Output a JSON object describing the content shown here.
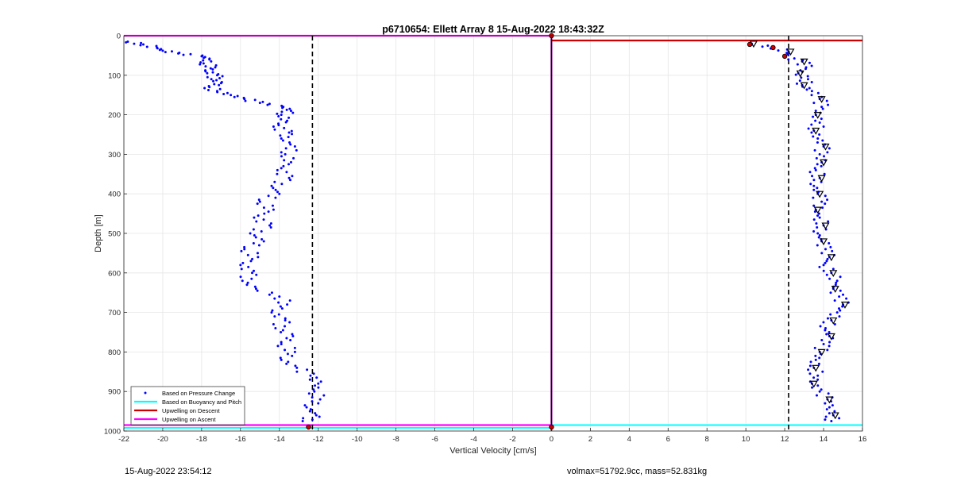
{
  "footer": {
    "timestamp": "15-Aug-2022 23:54:12",
    "params": "volmax=51792.9cc, mass=52.831kg"
  },
  "chart_data": {
    "type": "scatter",
    "title": "p6710654: Ellett Array 8 15-Aug-2022 18:43:32Z",
    "xlabel": "Vertical Velocity [cm/s]",
    "ylabel": "Depth [m]",
    "xlim": [
      -22,
      16
    ],
    "ylim": [
      0,
      1000
    ],
    "y_reversed": true,
    "grid": true,
    "xticks": [
      -22,
      -20,
      -18,
      -16,
      -14,
      -12,
      -10,
      -8,
      -6,
      -4,
      -2,
      0,
      2,
      4,
      6,
      8,
      10,
      12,
      14,
      16
    ],
    "yticks": [
      0,
      100,
      200,
      300,
      400,
      500,
      600,
      700,
      800,
      900,
      1000
    ],
    "legend_position": "bottom-left",
    "legend": [
      {
        "label": "Based on Pressure Change",
        "color": "#0000ff",
        "style": "dot"
      },
      {
        "label": "Based on Buoyancy and Pitch",
        "color": "#00ffff",
        "style": "line"
      },
      {
        "label": "Upwelling on Descent",
        "color": "#cc0000",
        "style": "line"
      },
      {
        "label": "Upwelling on Ascent",
        "color": "#ff00ff",
        "style": "line"
      }
    ],
    "mean_lines": [
      {
        "name": "mean descent velocity",
        "x": -12.3,
        "style": "dashed",
        "color": "#000000"
      },
      {
        "name": "mean ascent velocity",
        "x": 12.2,
        "style": "dashed",
        "color": "#000000"
      },
      {
        "name": "zero",
        "x": 0,
        "style": "solid",
        "color": "#000000"
      }
    ],
    "upwelling_descent": {
      "points": [
        [
          0,
          12
        ],
        [
          16,
          12
        ]
      ],
      "color": "#cc0000"
    },
    "upwelling_ascent": {
      "points": [
        [
          -22,
          0
        ],
        [
          0,
          0
        ],
        [
          0,
          985
        ],
        [
          -22,
          985
        ]
      ],
      "color": "#ff00ff"
    },
    "buoyancy_lines": [
      {
        "points": [
          [
            0,
            985
          ],
          [
            16,
            985
          ]
        ],
        "color": "#00ffff"
      },
      {
        "points": [
          [
            -22,
            992
          ],
          [
            0,
            992
          ]
        ],
        "color": "#00ffff"
      }
    ],
    "pressure_descent_profile": [
      [
        -21.8,
        15
      ],
      [
        -21.0,
        22
      ],
      [
        -20.3,
        30
      ],
      [
        -20.0,
        38
      ],
      [
        -19.2,
        45
      ],
      [
        -18.0,
        52
      ],
      [
        -17.6,
        60
      ],
      [
        -17.9,
        70
      ],
      [
        -17.3,
        80
      ],
      [
        -17.8,
        90
      ],
      [
        -17.2,
        100
      ],
      [
        -17.5,
        110
      ],
      [
        -17.0,
        120
      ],
      [
        -17.6,
        130
      ],
      [
        -17.2,
        140
      ],
      [
        -16.5,
        150
      ],
      [
        -15.8,
        160
      ],
      [
        -15.0,
        170
      ],
      [
        -13.8,
        180
      ],
      [
        -13.4,
        190
      ],
      [
        -13.9,
        200
      ],
      [
        -13.6,
        215
      ],
      [
        -14.3,
        230
      ],
      [
        -13.5,
        245
      ],
      [
        -13.9,
        260
      ],
      [
        -13.2,
        280
      ],
      [
        -13.7,
        300
      ],
      [
        -13.4,
        320
      ],
      [
        -14.1,
        340
      ],
      [
        -13.5,
        360
      ],
      [
        -14.4,
        380
      ],
      [
        -14.0,
        400
      ],
      [
        -15.0,
        420
      ],
      [
        -14.3,
        440
      ],
      [
        -15.3,
        460
      ],
      [
        -14.5,
        480
      ],
      [
        -15.5,
        500
      ],
      [
        -14.8,
        520
      ],
      [
        -15.8,
        540
      ],
      [
        -15.1,
        560
      ],
      [
        -16.0,
        580
      ],
      [
        -15.4,
        600
      ],
      [
        -15.9,
        620
      ],
      [
        -15.2,
        640
      ],
      [
        -14.0,
        660
      ],
      [
        -13.6,
        680
      ],
      [
        -14.4,
        700
      ],
      [
        -13.7,
        720
      ],
      [
        -14.2,
        740
      ],
      [
        -13.3,
        760
      ],
      [
        -13.9,
        780
      ],
      [
        -13.2,
        800
      ],
      [
        -13.9,
        820
      ],
      [
        -13.1,
        840
      ],
      [
        -12.4,
        860
      ],
      [
        -12.0,
        880
      ],
      [
        -12.2,
        900
      ],
      [
        -11.9,
        920
      ],
      [
        -12.6,
        940
      ],
      [
        -12.1,
        960
      ],
      [
        -12.8,
        975
      ]
    ],
    "pressure_ascent_profile": [
      [
        10.3,
        20
      ],
      [
        11.4,
        30
      ],
      [
        12.2,
        40
      ],
      [
        12.0,
        55
      ],
      [
        12.9,
        65
      ],
      [
        13.1,
        80
      ],
      [
        12.7,
        95
      ],
      [
        13.2,
        110
      ],
      [
        12.9,
        125
      ],
      [
        13.4,
        140
      ],
      [
        13.8,
        160
      ],
      [
        13.9,
        180
      ],
      [
        13.6,
        200
      ],
      [
        13.8,
        220
      ],
      [
        13.5,
        240
      ],
      [
        13.7,
        260
      ],
      [
        14.0,
        280
      ],
      [
        13.8,
        300
      ],
      [
        13.9,
        320
      ],
      [
        13.6,
        340
      ],
      [
        13.8,
        360
      ],
      [
        13.5,
        380
      ],
      [
        13.7,
        400
      ],
      [
        13.9,
        420
      ],
      [
        13.6,
        440
      ],
      [
        13.8,
        460
      ],
      [
        14.0,
        480
      ],
      [
        13.7,
        500
      ],
      [
        13.9,
        520
      ],
      [
        14.1,
        540
      ],
      [
        14.3,
        560
      ],
      [
        14.0,
        580
      ],
      [
        14.4,
        600
      ],
      [
        14.7,
        620
      ],
      [
        14.5,
        640
      ],
      [
        14.8,
        660
      ],
      [
        15.0,
        680
      ],
      [
        14.7,
        700
      ],
      [
        14.4,
        720
      ],
      [
        14.1,
        740
      ],
      [
        14.3,
        760
      ],
      [
        14.0,
        780
      ],
      [
        13.8,
        800
      ],
      [
        13.6,
        820
      ],
      [
        13.5,
        840
      ],
      [
        13.7,
        860
      ],
      [
        13.4,
        880
      ],
      [
        13.8,
        900
      ],
      [
        14.2,
        920
      ],
      [
        14.3,
        940
      ],
      [
        14.5,
        960
      ],
      [
        14.4,
        975
      ]
    ]
  }
}
